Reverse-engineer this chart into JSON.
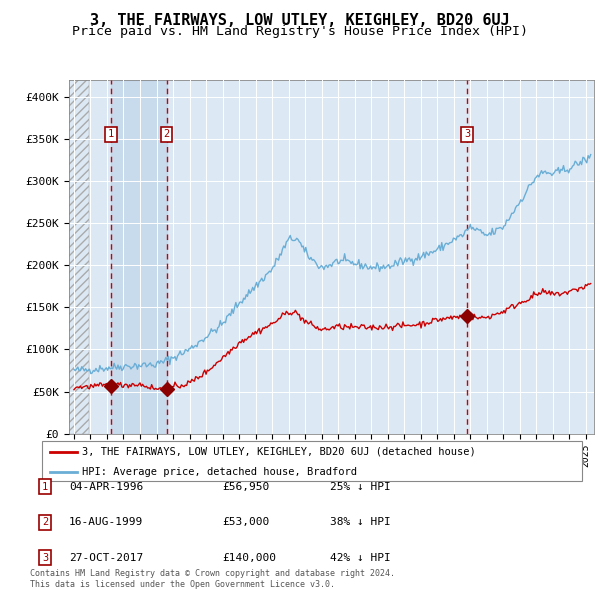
{
  "title": "3, THE FAIRWAYS, LOW UTLEY, KEIGHLEY, BD20 6UJ",
  "subtitle": "Price paid vs. HM Land Registry's House Price Index (HPI)",
  "title_fontsize": 11,
  "subtitle_fontsize": 9.5,
  "plot_bg_color": "#dce9f5",
  "sale_dates": [
    1996.25,
    1999.62,
    2017.82
  ],
  "sale_prices": [
    56950,
    53000,
    140000
  ],
  "sale_labels": [
    "1",
    "2",
    "3"
  ],
  "legend_entries": [
    "3, THE FAIRWAYS, LOW UTLEY, KEIGHLEY, BD20 6UJ (detached house)",
    "HPI: Average price, detached house, Bradford"
  ],
  "table_rows": [
    [
      "1",
      "04-APR-1996",
      "£56,950",
      "25% ↓ HPI"
    ],
    [
      "2",
      "16-AUG-1999",
      "£53,000",
      "38% ↓ HPI"
    ],
    [
      "3",
      "27-OCT-2017",
      "£140,000",
      "42% ↓ HPI"
    ]
  ],
  "footnote": "Contains HM Land Registry data © Crown copyright and database right 2024.\nThis data is licensed under the Open Government Licence v3.0.",
  "hpi_color": "#6aaed6",
  "price_color": "#cc0000",
  "marker_color": "#8b0000",
  "vline_color": "#cc0000",
  "ylim": [
    0,
    420000
  ],
  "xlim": [
    1993.7,
    2025.5
  ],
  "yticks": [
    0,
    50000,
    100000,
    150000,
    200000,
    250000,
    300000,
    350000,
    400000
  ],
  "ytick_labels": [
    "£0",
    "£50K",
    "£100K",
    "£150K",
    "£200K",
    "£250K",
    "£300K",
    "£350K",
    "£400K"
  ],
  "hpi_key_x": [
    1994,
    1995,
    1996,
    1997,
    1998,
    1999,
    2000,
    2001,
    2002,
    2003,
    2004,
    2005,
    2006,
    2007,
    2007.5,
    2008,
    2008.5,
    2009,
    2009.5,
    2010,
    2011,
    2012,
    2013,
    2014,
    2015,
    2016,
    2017,
    2017.5,
    2018,
    2018.5,
    2019,
    2020,
    2021,
    2022,
    2022.5,
    2023,
    2024,
    2025,
    2025.3
  ],
  "hpi_key_y": [
    75000,
    76000,
    78000,
    80000,
    81000,
    82000,
    90000,
    100000,
    115000,
    130000,
    155000,
    175000,
    195000,
    230000,
    232000,
    215000,
    205000,
    197000,
    200000,
    205000,
    202000,
    197000,
    198000,
    205000,
    210000,
    218000,
    230000,
    235000,
    245000,
    240000,
    235000,
    245000,
    275000,
    305000,
    310000,
    308000,
    315000,
    325000,
    328000
  ],
  "price_key_x": [
    1994,
    1995,
    1996,
    1996.25,
    1997,
    1998,
    1999,
    1999.62,
    2000,
    2001,
    2002,
    2003,
    2004,
    2005,
    2006,
    2007,
    2007.5,
    2008,
    2008.5,
    2009,
    2009.5,
    2010,
    2011,
    2012,
    2013,
    2014,
    2015,
    2016,
    2017,
    2017.82,
    2018,
    2018.5,
    2019,
    2020,
    2021,
    2022,
    2022.5,
    2023,
    2024,
    2025,
    2025.3
  ],
  "price_key_y": [
    55000,
    56000,
    57000,
    56950,
    58000,
    58500,
    53000,
    53000,
    55000,
    60000,
    73000,
    90000,
    108000,
    120000,
    130000,
    145000,
    143000,
    133000,
    128000,
    123000,
    125000,
    127000,
    126000,
    126000,
    127000,
    128000,
    130000,
    135000,
    138000,
    140000,
    140000,
    137000,
    138000,
    145000,
    155000,
    165000,
    168000,
    165000,
    168000,
    175000,
    178000
  ]
}
